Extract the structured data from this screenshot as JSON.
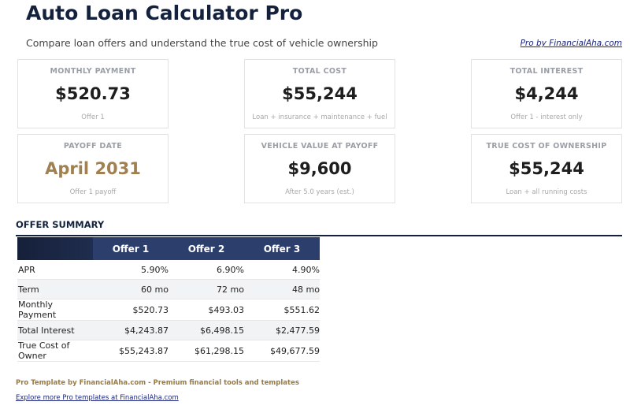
{
  "header": {
    "title": "Auto Loan Calculator Pro",
    "subtitle": "Compare loan offers and understand the true cost of vehicle ownership",
    "link": "Pro by FinancialAha.com"
  },
  "cards": [
    {
      "label": "MONTHLY PAYMENT",
      "value": "$520.73",
      "note": "Offer 1"
    },
    {
      "label": "TOTAL COST",
      "value": "$55,244",
      "note": "Loan + insurance + maintenance + fuel"
    },
    {
      "label": "TOTAL INTEREST",
      "value": "$4,244",
      "note": "Offer 1 - interest only"
    },
    {
      "label": "PAYOFF DATE",
      "value": "April 2031",
      "note": "Offer 1 payoff",
      "accent": true
    },
    {
      "label": "VEHICLE VALUE AT PAYOFF",
      "value": "$9,600",
      "note": "After 5.0 years (est.)"
    },
    {
      "label": "TRUE COST OF OWNERSHIP",
      "value": "$55,244",
      "note": "Loan + all running costs"
    }
  ],
  "table": {
    "title": "OFFER SUMMARY",
    "columns": [
      "Offer 1",
      "Offer 2",
      "Offer 3"
    ],
    "rows": [
      [
        "APR",
        "5.90%",
        "6.90%",
        "4.90%"
      ],
      [
        "Term",
        "60 mo",
        "72 mo",
        "48 mo"
      ],
      [
        "Monthly Payment",
        "$520.73",
        "$493.03",
        "$551.62"
      ],
      [
        "Total Interest",
        "$4,243.87",
        "$6,498.15",
        "$2,477.59"
      ],
      [
        "True Cost of Owner",
        "$55,243.87",
        "$61,298.15",
        "$49,677.59"
      ]
    ]
  },
  "footer": {
    "text": "Pro Template by FinancialAha.com - Premium financial tools and templates",
    "link": "Explore more Pro templates at FinancialAha.com"
  }
}
